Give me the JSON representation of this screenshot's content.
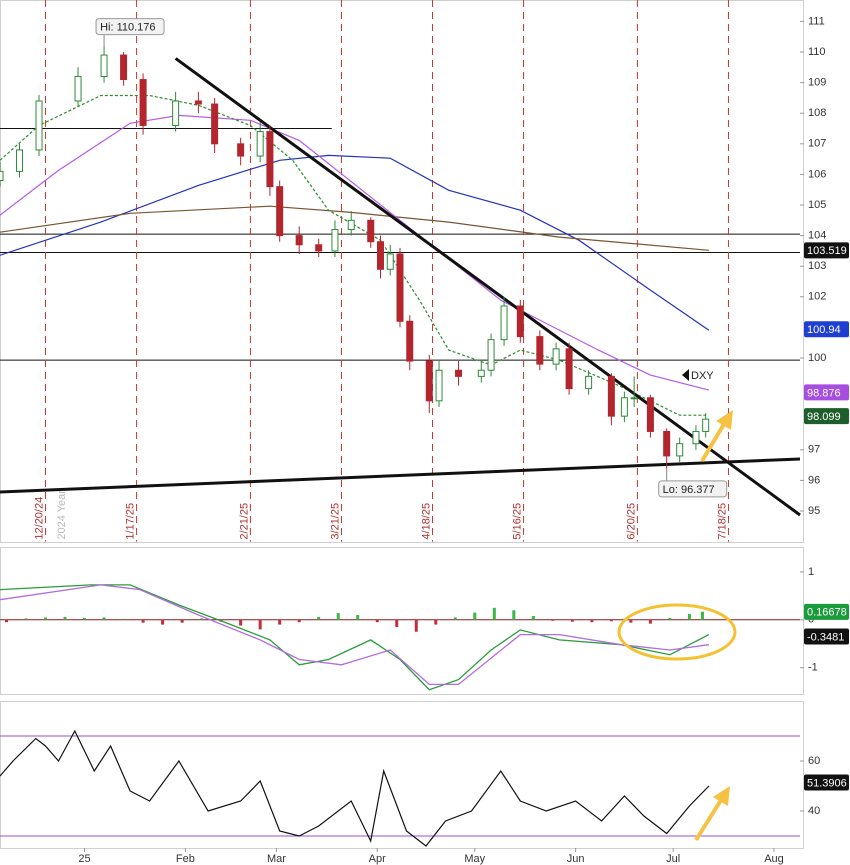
{
  "chart_data": [
    {
      "type": "candlestick",
      "symbol": "DXY",
      "x": [
        -26,
        -20,
        -14,
        -2,
        6,
        12,
        18,
        28,
        35,
        40,
        48,
        54,
        57,
        60,
        66,
        72,
        77,
        82,
        88,
        91,
        94,
        97,
        100,
        106,
        109,
        115,
        122,
        125,
        129,
        134,
        140,
        145,
        149,
        155,
        162,
        166,
        169,
        174,
        179,
        183,
        188,
        191
      ],
      "ohlc": [
        [
          105.8,
          106.4,
          105.6,
          106.1
        ],
        [
          106.1,
          107.0,
          105.9,
          106.8
        ],
        [
          106.8,
          108.6,
          106.6,
          108.4
        ],
        [
          108.4,
          109.5,
          108.2,
          109.2
        ],
        [
          109.2,
          110.18,
          109.0,
          109.9
        ],
        [
          109.9,
          110.0,
          108.9,
          109.1
        ],
        [
          109.1,
          109.3,
          107.3,
          107.6
        ],
        [
          107.6,
          108.7,
          107.4,
          108.4
        ],
        [
          108.4,
          108.7,
          108.0,
          108.3
        ],
        [
          108.3,
          108.5,
          106.7,
          107.0
        ],
        [
          107.0,
          107.2,
          106.3,
          106.6
        ],
        [
          106.6,
          107.7,
          106.4,
          107.4
        ],
        [
          107.4,
          107.6,
          105.3,
          105.6
        ],
        [
          105.6,
          105.8,
          103.8,
          104.0
        ],
        [
          104.0,
          104.3,
          103.4,
          103.7
        ],
        [
          103.7,
          103.9,
          103.3,
          103.5
        ],
        [
          103.5,
          104.5,
          103.3,
          104.2
        ],
        [
          104.2,
          104.8,
          104.0,
          104.5
        ],
        [
          104.5,
          104.6,
          103.6,
          103.8
        ],
        [
          103.8,
          104.0,
          102.6,
          102.9
        ],
        [
          102.9,
          103.7,
          102.7,
          103.4
        ],
        [
          103.4,
          103.6,
          101.0,
          101.2
        ],
        [
          101.2,
          101.4,
          99.6,
          99.9
        ],
        [
          99.9,
          100.1,
          98.2,
          98.6
        ],
        [
          98.6,
          99.9,
          98.4,
          99.6
        ],
        [
          99.6,
          99.9,
          99.1,
          99.4
        ],
        [
          99.4,
          99.9,
          99.2,
          99.6
        ],
        [
          99.6,
          100.8,
          99.4,
          100.6
        ],
        [
          100.6,
          102.0,
          100.4,
          101.7
        ],
        [
          101.7,
          101.9,
          100.5,
          100.7
        ],
        [
          100.7,
          100.9,
          99.6,
          99.8
        ],
        [
          99.8,
          100.5,
          99.6,
          100.3
        ],
        [
          100.3,
          100.5,
          98.8,
          99.0
        ],
        [
          99.0,
          99.6,
          98.8,
          99.4
        ],
        [
          99.4,
          99.5,
          97.8,
          98.1
        ],
        [
          98.1,
          98.9,
          97.9,
          98.7
        ],
        [
          98.7,
          99.4,
          98.4,
          98.7
        ],
        [
          98.7,
          98.8,
          97.4,
          97.6
        ],
        [
          97.6,
          97.7,
          96.38,
          96.8
        ],
        [
          96.8,
          97.4,
          96.6,
          97.2
        ],
        [
          97.2,
          97.8,
          97.0,
          97.6
        ],
        [
          97.6,
          98.2,
          97.4,
          98.0
        ]
      ],
      "up_color": "#2e8b3a",
      "down_color": "#b3262e",
      "xlim": [
        -26,
        220
      ],
      "ylim": [
        94,
        111.7
      ],
      "yticks": [
        95,
        96,
        97,
        100,
        102,
        103,
        104,
        105,
        106,
        107,
        108,
        109,
        110,
        111
      ],
      "moving_averages": [
        {
          "color": "#2233bb",
          "x": [
            -26,
            5,
            35,
            60,
            75,
            94,
            112,
            134,
            152,
            174,
            192
          ],
          "values": [
            103.36,
            104.44,
            105.64,
            106.46,
            106.62,
            106.53,
            105.48,
            104.83,
            103.85,
            102.22,
            100.91
          ]
        },
        {
          "color": "#7a5530",
          "x": [
            -26,
            14,
            57,
            82,
            112,
            146,
            192
          ],
          "values": [
            104.11,
            104.73,
            104.96,
            104.76,
            104.44,
            103.95,
            103.52
          ]
        },
        {
          "color": "#b45ce8",
          "x": [
            -26,
            -8,
            14,
            29,
            51,
            66,
            97,
            128,
            158,
            174,
            192
          ],
          "values": [
            104.67,
            106.13,
            107.67,
            107.93,
            107.77,
            107.11,
            104.5,
            101.89,
            100.26,
            99.44,
            98.95
          ]
        },
        {
          "color": "#2d8f2d",
          "dash": true,
          "x": [
            -26,
            -14,
            5,
            20,
            35,
            51,
            64,
            75,
            91,
            103,
            112,
            125,
            134,
            146,
            164,
            183,
            191
          ],
          "values": [
            106.46,
            107.6,
            108.58,
            108.58,
            108.26,
            107.6,
            106.46,
            104.83,
            103.85,
            101.89,
            100.26,
            99.77,
            100.26,
            99.93,
            99.11,
            98.13,
            98.13
          ]
        }
      ],
      "hlines": [
        {
          "value": 107.5,
          "x": [
            -26,
            76
          ]
        },
        {
          "value": 104.05
        },
        {
          "value": 103.45
        },
        {
          "value": 99.93
        }
      ],
      "trendlines": [
        {
          "x": [
            28,
            220
          ],
          "values": [
            109.79,
            94.87
          ]
        },
        {
          "x": [
            -26,
            220
          ],
          "values": [
            95.62,
            96.7
          ]
        }
      ],
      "events": [
        {
          "x": -12,
          "label": "12/20/24"
        },
        {
          "x": 16,
          "label": "1/17/25"
        },
        {
          "x": 51,
          "label": "2/21/25"
        },
        {
          "x": 79,
          "label": "3/21/25"
        },
        {
          "x": 107,
          "label": "4/18/25"
        },
        {
          "x": 135,
          "label": "5/16/25"
        },
        {
          "x": 170,
          "label": "6/20/25"
        },
        {
          "x": 198,
          "label": "7/18/25"
        }
      ],
      "year_label": {
        "x": -5,
        "label": "2024 Year"
      },
      "high": {
        "x": 6,
        "value": 110.176,
        "label": "Hi: 110.176"
      },
      "low": {
        "x": 179,
        "value": 96.377,
        "label": "Lo: 96.377"
      },
      "price_labels": [
        {
          "value": 103.519,
          "label": "103.519",
          "color": "#111111"
        },
        {
          "value": 100.94,
          "label": "100.94",
          "color": "#1f3fd0"
        },
        {
          "value": 98.876,
          "label": "98.876",
          "color": "#a64ee0"
        },
        {
          "value": 98.099,
          "label": "98.099",
          "color": "#1e5e2a"
        }
      ]
    },
    {
      "type": "macd",
      "xlim": [
        -26,
        220
      ],
      "ylim": [
        -1.55,
        1.5
      ],
      "yticks": [
        -1,
        0,
        1
      ],
      "histogram": {
        "x": [
          -24,
          -18,
          -12,
          -6,
          0,
          6,
          12,
          18,
          24,
          30,
          36,
          42,
          48,
          54,
          60,
          66,
          72,
          78,
          84,
          90,
          96,
          102,
          108,
          114,
          120,
          126,
          132,
          138,
          144,
          150,
          156,
          162,
          168,
          174,
          180,
          186,
          190
        ],
        "values": [
          -0.05,
          0.03,
          0.05,
          0.06,
          0.04,
          0.05,
          0.02,
          -0.06,
          -0.1,
          -0.06,
          0.03,
          -0.04,
          -0.12,
          -0.2,
          -0.1,
          -0.05,
          0.06,
          0.14,
          0.1,
          -0.05,
          -0.15,
          -0.25,
          -0.1,
          0.05,
          0.15,
          0.25,
          0.2,
          0.08,
          -0.02,
          -0.04,
          -0.05,
          -0.03,
          -0.06,
          -0.08,
          0.04,
          0.12,
          0.17
        ],
        "up_color": "#3cb54a",
        "down_color": "#c0303a"
      },
      "lines": [
        {
          "color": "#2a9d3a",
          "x": [
            -26,
            2,
            14,
            29,
            45,
            57,
            66,
            75,
            88,
            97,
            106,
            115,
            125,
            134,
            146,
            165,
            180,
            192
          ],
          "values": [
            0.63,
            0.73,
            0.73,
            0.31,
            -0.1,
            -0.42,
            -0.94,
            -0.83,
            -0.42,
            -0.83,
            -1.46,
            -1.25,
            -0.63,
            -0.21,
            -0.42,
            -0.52,
            -0.73,
            -0.31
          ]
        },
        {
          "color": "#b36be0",
          "x": [
            -26,
            5,
            17,
            35,
            54,
            66,
            79,
            94,
            106,
            115,
            134,
            146,
            165,
            180,
            192
          ],
          "values": [
            0.42,
            0.73,
            0.63,
            0.1,
            -0.42,
            -0.83,
            -0.94,
            -0.63,
            -1.35,
            -1.35,
            -0.31,
            -0.31,
            -0.52,
            -0.63,
            -0.52
          ]
        }
      ],
      "price_labels": [
        {
          "value": 0.16678,
          "label": "0.16678",
          "color": "#1a9b3c"
        },
        {
          "value": -0.3481,
          "label": "-0.3481",
          "color": "#111111"
        }
      ]
    },
    {
      "type": "line",
      "xlim": [
        -26,
        220
      ],
      "ylim": [
        25.2,
        83.6
      ],
      "yticks": [
        40,
        60
      ],
      "color": "#111111",
      "x": [
        -26,
        -22,
        -15,
        -12,
        -8,
        -3,
        3,
        8,
        14,
        20,
        29,
        38,
        48,
        54,
        60,
        66,
        72,
        82,
        88,
        92,
        99,
        105,
        111,
        119,
        128,
        134,
        142,
        151,
        159,
        166,
        172,
        179,
        186,
        192
      ],
      "values": [
        54,
        60,
        69,
        66,
        60,
        72,
        56,
        66,
        48,
        44,
        60,
        40,
        44,
        52,
        32,
        30,
        34,
        44,
        28,
        56,
        32,
        26,
        36,
        40,
        56,
        44,
        40,
        44,
        36,
        46,
        38,
        31,
        42,
        50
      ],
      "hlines": [
        {
          "value": 70
        },
        {
          "value": 30
        }
      ],
      "price_labels": [
        {
          "value": 51.3906,
          "label": "51.3906",
          "color": "#111111"
        }
      ],
      "xticks": [
        {
          "value": 0,
          "label": "25"
        },
        {
          "value": 31,
          "label": "Feb"
        },
        {
          "value": 59,
          "label": "Mar"
        },
        {
          "value": 90,
          "label": "Apr"
        },
        {
          "value": 120,
          "label": "May"
        },
        {
          "value": 151,
          "label": "Jun"
        },
        {
          "value": 181,
          "label": "Jul"
        },
        {
          "value": 212,
          "label": "Aug"
        }
      ]
    }
  ]
}
